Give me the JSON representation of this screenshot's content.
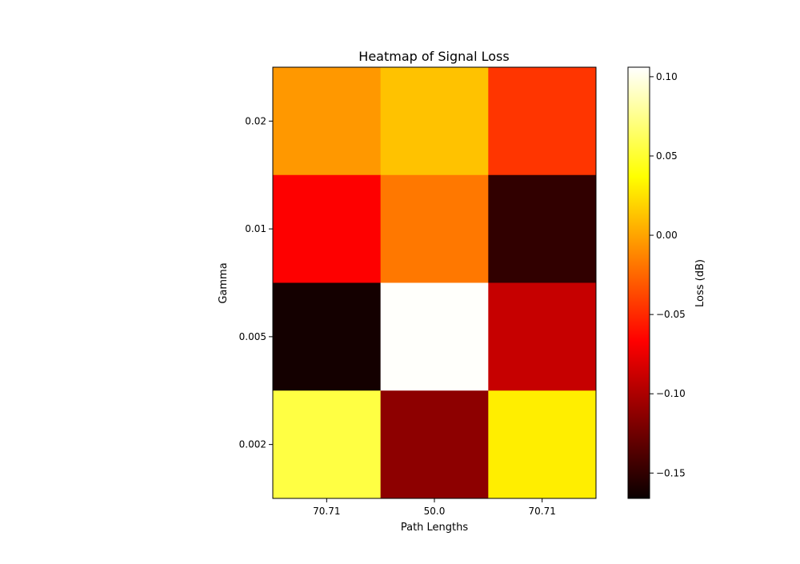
{
  "chart_data": {
    "type": "heatmap",
    "title": "Heatmap of Signal Loss",
    "xlabel": "Path Lengths",
    "ylabel": "Gamma",
    "x_categories": [
      "70.71",
      "50.0",
      "70.71"
    ],
    "y_categories": [
      "0.02",
      "0.01",
      "0.005",
      "0.002"
    ],
    "values": [
      [
        -0.005,
        0.012,
        -0.045
      ],
      [
        -0.067,
        -0.018,
        -0.15
      ],
      [
        -0.162,
        0.105,
        -0.09
      ],
      [
        0.055,
        -0.113,
        0.03
      ]
    ],
    "colormap": "hot",
    "colorbar": {
      "label": "Loss (dB)",
      "min": -0.166,
      "max": 0.106,
      "ticks": [
        -0.15,
        -0.1,
        -0.05,
        0.0,
        0.05,
        0.1
      ],
      "tick_labels": [
        "−0.15",
        "−0.10",
        "−0.05",
        "0.00",
        "0.05",
        "0.10"
      ]
    }
  }
}
